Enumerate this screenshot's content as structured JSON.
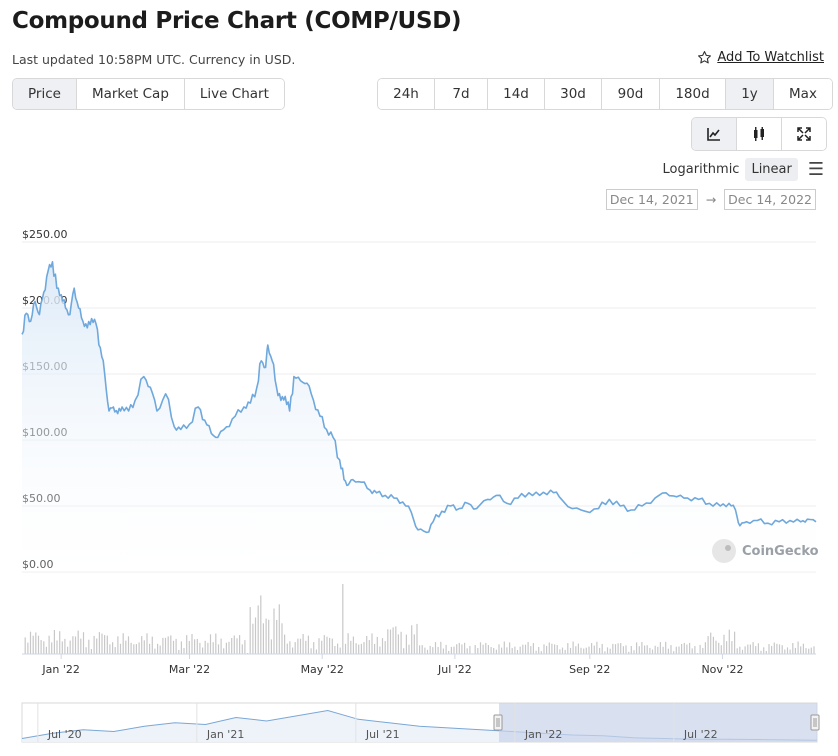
{
  "header": {
    "title": "Compound Price Chart (COMP/USD)",
    "subtitle": "Last updated 10:58PM UTC. Currency in USD.",
    "watchlist_label": "Add To Watchlist"
  },
  "tabs": [
    {
      "label": "Price",
      "active": true
    },
    {
      "label": "Market Cap",
      "active": false
    },
    {
      "label": "Live Chart",
      "active": false
    }
  ],
  "ranges": [
    {
      "label": "24h",
      "active": false
    },
    {
      "label": "7d",
      "active": false
    },
    {
      "label": "14d",
      "active": false
    },
    {
      "label": "30d",
      "active": false
    },
    {
      "label": "90d",
      "active": false
    },
    {
      "label": "180d",
      "active": false
    },
    {
      "label": "1y",
      "active": true
    },
    {
      "label": "Max",
      "active": false
    }
  ],
  "chart_types": [
    {
      "icon": "line-chart-icon",
      "active": true
    },
    {
      "icon": "candlestick-icon",
      "active": false
    },
    {
      "icon": "fullscreen-icon",
      "active": false
    }
  ],
  "scale": {
    "log_label": "Logarithmic",
    "linear_label": "Linear",
    "active": "Linear",
    "menu_icon": "hamburger-menu-icon"
  },
  "date_range": {
    "from": "Dec 14, 2021",
    "arrow": "→",
    "to": "Dec 14, 2022"
  },
  "watermark": "CoinGecko",
  "colors": {
    "line": "#6fa8dc",
    "area_top": "#d9e8f7",
    "volume": "#c8c8c8",
    "navigator_mask": "#c9d3ea",
    "grid": "#ececec"
  },
  "chart_data": {
    "type": "area",
    "title": "Compound Price Chart (COMP/USD)",
    "ylabel": "",
    "ylim": [
      0,
      250
    ],
    "yticks": [
      "$250.00",
      "$200.00",
      "$150.00",
      "$100.00",
      "$50.00",
      "$0.00"
    ],
    "ytick_values": [
      250,
      200,
      150,
      100,
      50,
      0
    ],
    "x_start": "2021-12-14",
    "x_end": "2022-12-14",
    "xticks": [
      {
        "label": "Jan '22",
        "date": "2022-01-01"
      },
      {
        "label": "Mar '22",
        "date": "2022-03-01"
      },
      {
        "label": "May '22",
        "date": "2022-05-01"
      },
      {
        "label": "Jul '22",
        "date": "2022-07-01"
      },
      {
        "label": "Sep '22",
        "date": "2022-09-01"
      },
      {
        "label": "Nov '22",
        "date": "2022-11-01"
      }
    ],
    "series": [
      {
        "name": "Price",
        "points": [
          [
            "2021-12-14",
            180
          ],
          [
            "2021-12-16",
            196
          ],
          [
            "2021-12-18",
            190
          ],
          [
            "2021-12-20",
            205
          ],
          [
            "2021-12-22",
            195
          ],
          [
            "2021-12-24",
            212
          ],
          [
            "2021-12-26",
            228
          ],
          [
            "2021-12-28",
            235
          ],
          [
            "2021-12-30",
            215
          ],
          [
            "2022-01-01",
            210
          ],
          [
            "2022-01-03",
            200
          ],
          [
            "2022-01-05",
            195
          ],
          [
            "2022-01-07",
            215
          ],
          [
            "2022-01-09",
            200
          ],
          [
            "2022-01-11",
            190
          ],
          [
            "2022-01-13",
            185
          ],
          [
            "2022-01-15",
            192
          ],
          [
            "2022-01-17",
            188
          ],
          [
            "2022-01-19",
            170
          ],
          [
            "2022-01-21",
            150
          ],
          [
            "2022-01-23",
            122
          ],
          [
            "2022-01-25",
            125
          ],
          [
            "2022-01-27",
            120
          ],
          [
            "2022-01-29",
            125
          ],
          [
            "2022-02-01",
            122
          ],
          [
            "2022-02-04",
            130
          ],
          [
            "2022-02-08",
            148
          ],
          [
            "2022-02-11",
            140
          ],
          [
            "2022-02-14",
            122
          ],
          [
            "2022-02-18",
            135
          ],
          [
            "2022-02-22",
            110
          ],
          [
            "2022-02-25",
            108
          ],
          [
            "2022-03-01",
            112
          ],
          [
            "2022-03-05",
            125
          ],
          [
            "2022-03-08",
            115
          ],
          [
            "2022-03-11",
            105
          ],
          [
            "2022-03-14",
            102
          ],
          [
            "2022-03-18",
            110
          ],
          [
            "2022-03-22",
            118
          ],
          [
            "2022-03-26",
            125
          ],
          [
            "2022-03-29",
            128
          ],
          [
            "2022-04-01",
            140
          ],
          [
            "2022-04-03",
            160
          ],
          [
            "2022-04-05",
            155
          ],
          [
            "2022-04-06",
            172
          ],
          [
            "2022-04-08",
            160
          ],
          [
            "2022-04-10",
            140
          ],
          [
            "2022-04-12",
            130
          ],
          [
            "2022-04-14",
            133
          ],
          [
            "2022-04-16",
            122
          ],
          [
            "2022-04-18",
            148
          ],
          [
            "2022-04-21",
            145
          ],
          [
            "2022-04-24",
            143
          ],
          [
            "2022-04-27",
            130
          ],
          [
            "2022-04-30",
            118
          ],
          [
            "2022-05-03",
            108
          ],
          [
            "2022-05-06",
            102
          ],
          [
            "2022-05-09",
            85
          ],
          [
            "2022-05-11",
            70
          ],
          [
            "2022-05-13",
            66
          ],
          [
            "2022-05-15",
            70
          ],
          [
            "2022-05-19",
            68
          ],
          [
            "2022-05-23",
            62
          ],
          [
            "2022-05-26",
            60
          ],
          [
            "2022-05-30",
            58
          ],
          [
            "2022-06-03",
            56
          ],
          [
            "2022-06-07",
            53
          ],
          [
            "2022-06-11",
            45
          ],
          [
            "2022-06-14",
            32
          ],
          [
            "2022-06-18",
            30
          ],
          [
            "2022-06-21",
            38
          ],
          [
            "2022-06-25",
            46
          ],
          [
            "2022-06-29",
            50
          ],
          [
            "2022-07-03",
            48
          ],
          [
            "2022-07-07",
            52
          ],
          [
            "2022-07-11",
            48
          ],
          [
            "2022-07-16",
            55
          ],
          [
            "2022-07-20",
            58
          ],
          [
            "2022-07-25",
            52
          ],
          [
            "2022-07-30",
            56
          ],
          [
            "2022-08-04",
            60
          ],
          [
            "2022-08-09",
            58
          ],
          [
            "2022-08-14",
            62
          ],
          [
            "2022-08-18",
            57
          ],
          [
            "2022-08-24",
            48
          ],
          [
            "2022-08-30",
            46
          ],
          [
            "2022-09-05",
            48
          ],
          [
            "2022-09-10",
            55
          ],
          [
            "2022-09-15",
            50
          ],
          [
            "2022-09-20",
            47
          ],
          [
            "2022-09-25",
            50
          ],
          [
            "2022-10-01",
            56
          ],
          [
            "2022-10-06",
            60
          ],
          [
            "2022-10-11",
            57
          ],
          [
            "2022-10-16",
            56
          ],
          [
            "2022-10-21",
            55
          ],
          [
            "2022-10-26",
            52
          ],
          [
            "2022-10-31",
            50
          ],
          [
            "2022-11-04",
            52
          ],
          [
            "2022-11-07",
            47
          ],
          [
            "2022-11-09",
            35
          ],
          [
            "2022-11-12",
            38
          ],
          [
            "2022-11-17",
            39
          ],
          [
            "2022-11-22",
            37
          ],
          [
            "2022-11-27",
            38
          ],
          [
            "2022-12-02",
            39
          ],
          [
            "2022-12-07",
            38
          ],
          [
            "2022-12-10",
            40
          ],
          [
            "2022-12-14",
            38
          ]
        ]
      }
    ]
  },
  "navigator": {
    "ticks": [
      "Jul '20",
      "Jan '21",
      "Jul '21",
      "Jan '22",
      "Jul '22"
    ],
    "values": [
      0.1,
      0.25,
      0.35,
      0.3,
      0.45,
      0.55,
      0.5,
      0.7,
      0.6,
      0.75,
      0.9,
      0.65,
      0.55,
      0.45,
      0.4,
      0.35,
      0.3,
      0.25,
      0.2,
      0.18,
      0.12,
      0.1,
      0.08,
      0.08,
      0.07,
      0.06,
      0.05
    ],
    "selected_from_fraction": 0.6
  }
}
